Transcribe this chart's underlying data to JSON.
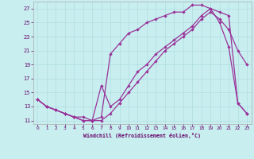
{
  "xlabel": "Windchill (Refroidissement éolien,°C)",
  "bg_color": "#c8eef0",
  "grid_color": "#b0dde0",
  "line_color": "#993399",
  "xlim": [
    -0.5,
    23.5
  ],
  "ylim": [
    10.5,
    28.0
  ],
  "xticks": [
    0,
    1,
    2,
    3,
    4,
    5,
    6,
    7,
    8,
    9,
    10,
    11,
    12,
    13,
    14,
    15,
    16,
    17,
    18,
    19,
    20,
    21,
    22,
    23
  ],
  "yticks": [
    11,
    13,
    15,
    17,
    19,
    21,
    23,
    25,
    27
  ],
  "line1_x": [
    0,
    1,
    2,
    3,
    4,
    5,
    6,
    7,
    8,
    9,
    10,
    11,
    12,
    13,
    14,
    15,
    16,
    17,
    18,
    19,
    20,
    21,
    22,
    23
  ],
  "line1_y": [
    14.0,
    13.0,
    12.5,
    12.0,
    11.5,
    11.5,
    11.0,
    11.0,
    12.0,
    13.5,
    15.0,
    16.5,
    18.0,
    19.5,
    21.0,
    22.0,
    23.0,
    24.0,
    25.5,
    26.5,
    25.5,
    24.0,
    21.0,
    19.0
  ],
  "line2_x": [
    0,
    1,
    2,
    3,
    4,
    5,
    6,
    7,
    8,
    9,
    10,
    11,
    12,
    13,
    14,
    15,
    16,
    17,
    18,
    19,
    20,
    21,
    22,
    23
  ],
  "line2_y": [
    14.0,
    13.0,
    12.5,
    12.0,
    11.5,
    11.0,
    11.0,
    11.5,
    20.5,
    22.0,
    23.5,
    24.0,
    25.0,
    25.5,
    26.0,
    26.5,
    26.5,
    27.5,
    27.5,
    27.0,
    26.5,
    26.0,
    13.5,
    12.0
  ],
  "line3_x": [
    0,
    1,
    2,
    3,
    4,
    5,
    6,
    7,
    8,
    9,
    10,
    11,
    12,
    13,
    14,
    15,
    16,
    17,
    18,
    19,
    20,
    21,
    22,
    23
  ],
  "line3_y": [
    14.0,
    13.0,
    12.5,
    12.0,
    11.5,
    11.0,
    11.0,
    16.0,
    13.0,
    14.0,
    16.0,
    18.0,
    19.0,
    20.5,
    21.5,
    22.5,
    23.5,
    24.5,
    26.0,
    27.0,
    25.0,
    21.5,
    13.5,
    12.0
  ]
}
